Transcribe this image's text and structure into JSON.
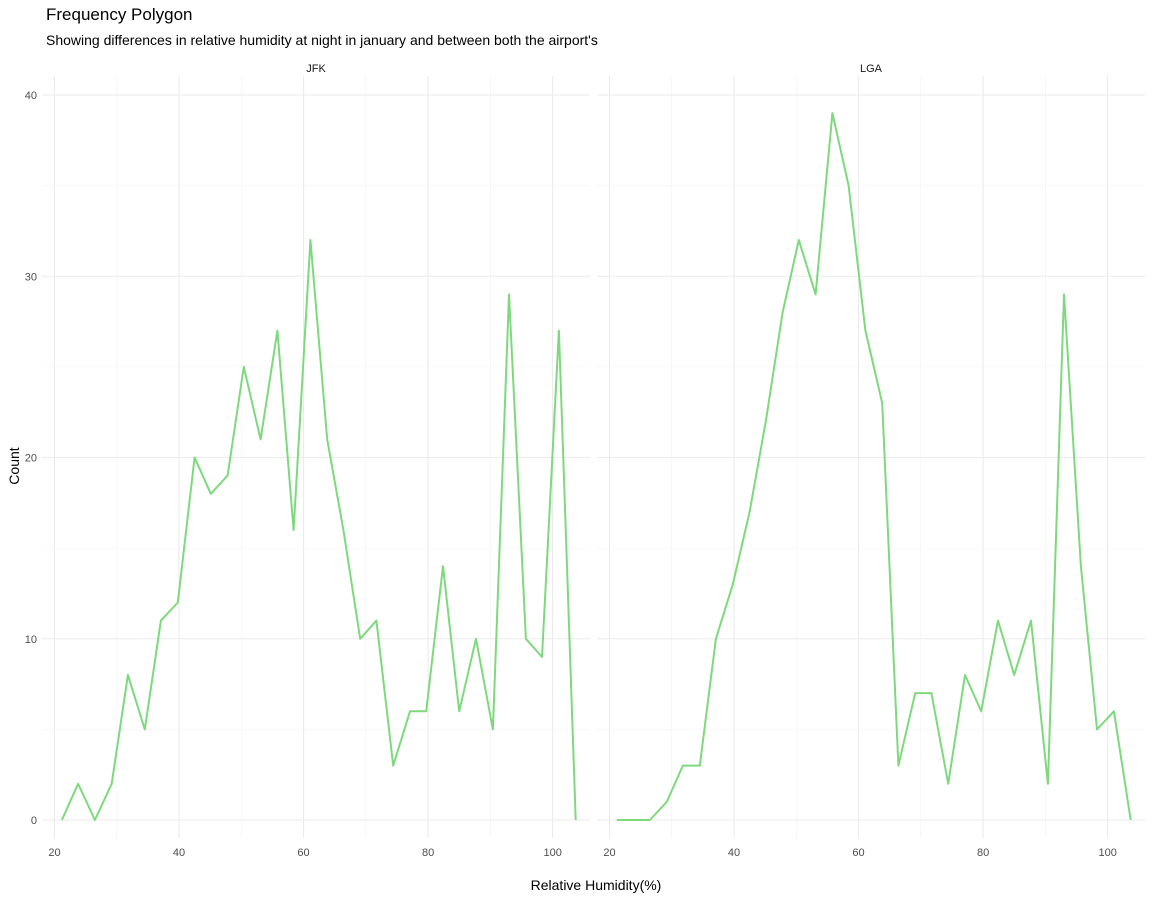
{
  "chart_data": {
    "type": "line",
    "title": "Frequency Polygon",
    "subtitle": "Showing differences in relative humidity at night in january and between both the airport's",
    "xlabel": "Relative Humidity(%)",
    "ylabel": "Count",
    "xlim": [
      18,
      106
    ],
    "ylim": [
      0,
      40
    ],
    "xticks": [
      20,
      40,
      60,
      80,
      100
    ],
    "yticks": [
      0,
      10,
      20,
      30,
      40
    ],
    "grid": true,
    "line_color": "#7ed97e",
    "facets": [
      {
        "name": "JFK",
        "x": [
          21.2,
          23.8,
          26.5,
          29.2,
          31.8,
          34.5,
          37.1,
          39.8,
          42.5,
          45.1,
          47.8,
          50.4,
          53.1,
          55.8,
          58.4,
          61.1,
          63.8,
          66.4,
          69.1,
          71.7,
          74.4,
          77.1,
          79.7,
          82.4,
          85.0,
          87.7,
          90.4,
          93.0,
          95.7,
          98.3,
          101.0,
          103.7
        ],
        "y": [
          0,
          2,
          0,
          2,
          8,
          5,
          11,
          12,
          20,
          18,
          19,
          25,
          21,
          27,
          16,
          32,
          21,
          16,
          10,
          11,
          3,
          6,
          6,
          14,
          6,
          10,
          5,
          29,
          10,
          9,
          27,
          0
        ]
      },
      {
        "name": "LGA",
        "x": [
          21.2,
          23.8,
          26.5,
          29.2,
          31.8,
          34.5,
          37.1,
          39.8,
          42.5,
          45.1,
          47.8,
          50.4,
          53.1,
          55.8,
          58.4,
          61.1,
          63.8,
          66.4,
          69.1,
          71.7,
          74.4,
          77.1,
          79.7,
          82.4,
          85.0,
          87.7,
          90.4,
          93.0,
          95.7,
          98.3,
          101.0,
          103.7
        ],
        "y": [
          0,
          0,
          0,
          1,
          3,
          3,
          10,
          13,
          17,
          22,
          28,
          32,
          29,
          39,
          35,
          27,
          23,
          3,
          7,
          7,
          2,
          8,
          6,
          11,
          8,
          11,
          2,
          29,
          14,
          5,
          6,
          0
        ]
      }
    ]
  }
}
